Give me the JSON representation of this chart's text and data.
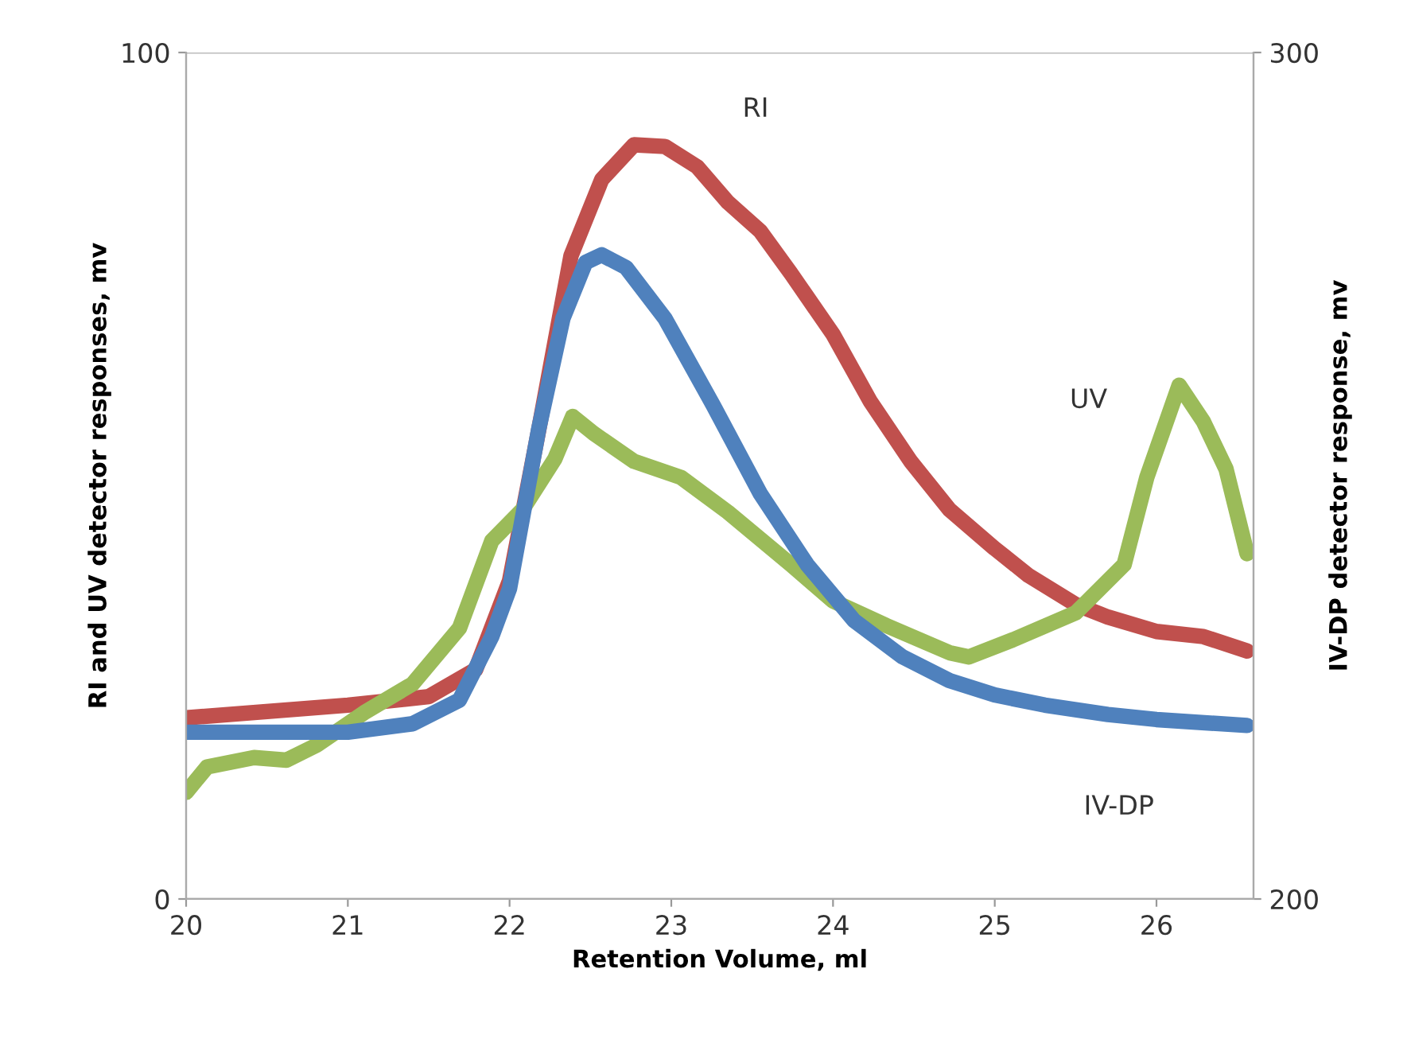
{
  "chart_data": {
    "type": "line",
    "xlabel": "Retention Volume, ml",
    "ylabel": "RI and UV detector responses, mv",
    "y2label": "IV-DP detector response, mv",
    "xlim": [
      20,
      26.6
    ],
    "xticks": [
      20,
      21,
      22,
      23,
      24,
      25,
      26
    ],
    "ylim": [
      0,
      100
    ],
    "yticks": [
      0,
      100
    ],
    "y2lim": [
      200,
      300
    ],
    "y2ticks": [
      200,
      300
    ],
    "grid": "y",
    "legend": false,
    "marker": "none",
    "line_style": "solid",
    "series": [
      {
        "name": "RI",
        "color": "#c0504d",
        "x": [
          20.0,
          21.0,
          21.5,
          21.79,
          22.0,
          22.18,
          22.38,
          22.57,
          22.77,
          22.96,
          23.16,
          23.35,
          23.55,
          23.74,
          24.0,
          24.23,
          24.48,
          24.72,
          25.0,
          25.21,
          25.5,
          25.7,
          26.0,
          26.29,
          26.56
        ],
        "values": [
          21.4,
          22.9,
          23.9,
          27.1,
          37.6,
          55.4,
          76,
          85,
          89.1,
          88.9,
          86.5,
          82.3,
          78.9,
          73.9,
          66.7,
          58.8,
          51.7,
          46,
          41.4,
          38.2,
          34.8,
          33.3,
          31.6,
          31,
          29.3
        ]
      },
      {
        "name": "IV-DP",
        "color": "#4f81bd",
        "axis": "y2",
        "x": [
          20.0,
          21.0,
          21.4,
          21.69,
          21.89,
          22.0,
          22.18,
          22.33,
          22.47,
          22.57,
          22.72,
          22.96,
          23.26,
          23.55,
          23.84,
          24.13,
          24.43,
          24.72,
          25.0,
          25.31,
          25.7,
          26.0,
          26.56
        ],
        "values": [
          219.7,
          219.7,
          220.7,
          223.5,
          231,
          236.7,
          255.5,
          268.6,
          275.2,
          276.1,
          274.6,
          268.6,
          258.3,
          247.9,
          239.5,
          232.9,
          228.6,
          225.8,
          224.1,
          222.9,
          221.8,
          221.2,
          220.5
        ]
      },
      {
        "name": "UV",
        "color": "#9bbb59",
        "x": [
          20.0,
          20.13,
          20.42,
          20.62,
          20.81,
          21.1,
          21.4,
          21.69,
          21.89,
          22.08,
          22.28,
          22.39,
          22.52,
          22.77,
          23.06,
          23.35,
          23.74,
          24.0,
          24.33,
          24.72,
          24.84,
          25.11,
          25.5,
          25.8,
          25.94,
          26.14,
          26.29,
          26.43,
          26.56
        ],
        "values": [
          12.6,
          15.6,
          16.7,
          16.4,
          18.2,
          22,
          25.4,
          32,
          42.3,
          46,
          52,
          57,
          55,
          51.7,
          49.8,
          45.7,
          39.5,
          35.2,
          32.3,
          29.1,
          28.6,
          30.6,
          33.8,
          39.5,
          49.8,
          60.7,
          56.4,
          50.8,
          40.8
        ]
      }
    ]
  }
}
